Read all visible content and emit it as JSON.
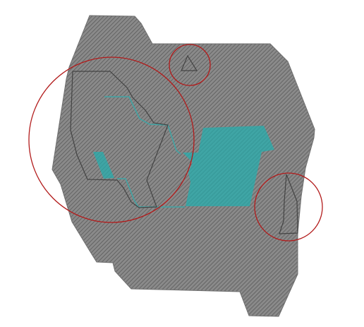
{
  "colors": {
    "background": "#ffffff",
    "landmass_fill": "#8a8a8a",
    "hatch_line": "#5a5a5a",
    "landmass_stroke": "#6f6f6f",
    "water_fill": "#3fa5a5",
    "outline_stroke": "#444444",
    "highlight_circle": "#b21b1b"
  },
  "annotations": {
    "highlight_circles": 3,
    "pattern": "diagonal-hatch"
  }
}
